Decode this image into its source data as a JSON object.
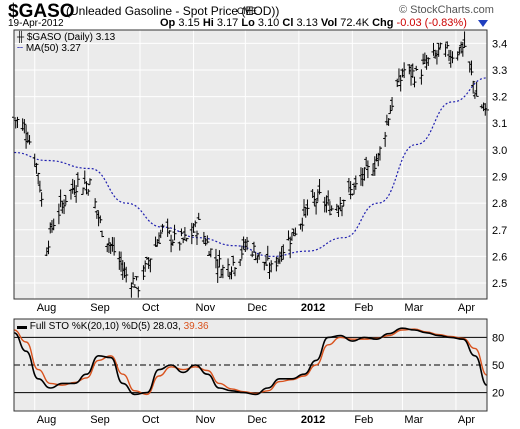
{
  "header": {
    "symbol": "$GASO",
    "description": "(Unleaded Gasoline - Spot Price (EOD))",
    "exchange": "CME",
    "watermark": "© StockCharts.com",
    "date": "19-Apr-2012",
    "op_label": "Op",
    "op": "3.15",
    "hi_label": "Hi",
    "hi": "3.17",
    "lo_label": "Lo",
    "lo": "3.10",
    "cl_label": "Cl",
    "cl": "3.13",
    "vol_label": "Vol",
    "vol": "72.4K",
    "chg_label": "Chg",
    "chg": "-0.03 (-0.83%)"
  },
  "legend": {
    "price": "$GASO (Daily) 3.13",
    "ma": "MA(50) 3.27",
    "sto_prefix": "Full STO %K(20,10) %D(5)",
    "sto_k": "28.03",
    "sto_d": "39.36"
  },
  "colors": {
    "background": "#ebebeb",
    "grid": "#ffffff",
    "price_bars": "#000000",
    "ma": "#2020b0",
    "sto_k": "#000000",
    "sto_d": "#d9531e",
    "header_arrow": "#1f3fbf",
    "chg": "#cc0000"
  },
  "chart_data": [
    {
      "type": "ohlc",
      "title": "$GASO (Unleaded Gasoline - Spot Price (EOD))",
      "x_range": [
        "2011-07-20",
        "2012-04-19"
      ],
      "x_ticks": [
        "Aug",
        "Sep",
        "Oct",
        "Nov",
        "Dec",
        "2012",
        "Feb",
        "Mar",
        "Apr"
      ],
      "ylim": [
        2.44,
        3.45
      ],
      "y_ticks": [
        "2.5",
        "2.6",
        "2.7",
        "2.8",
        "2.9",
        "3.0",
        "3.1",
        "3.2",
        "3.3",
        "3.4"
      ],
      "grid": true,
      "series": [
        {
          "name": "$GASO (Daily)",
          "type": "close",
          "x": [
            "2011-07-20",
            "2011-07-27",
            "2011-08-03",
            "2011-08-08",
            "2011-08-12",
            "2011-08-19",
            "2011-08-26",
            "2011-09-02",
            "2011-09-09",
            "2011-09-16",
            "2011-09-23",
            "2011-09-30",
            "2011-10-07",
            "2011-10-14",
            "2011-10-21",
            "2011-10-28",
            "2011-11-04",
            "2011-11-11",
            "2011-11-18",
            "2011-11-25",
            "2011-12-02",
            "2011-12-09",
            "2011-12-16",
            "2011-12-23",
            "2011-12-30",
            "2012-01-06",
            "2012-01-13",
            "2012-01-20",
            "2012-01-27",
            "2012-02-03",
            "2012-02-10",
            "2012-02-16",
            "2012-02-24",
            "2012-03-02",
            "2012-03-09",
            "2012-03-16",
            "2012-03-23",
            "2012-03-30",
            "2012-04-06",
            "2012-04-13",
            "2012-04-19"
          ],
          "values": [
            3.12,
            3.08,
            2.92,
            2.64,
            2.73,
            2.82,
            2.88,
            2.87,
            2.7,
            2.62,
            2.53,
            2.49,
            2.6,
            2.7,
            2.66,
            2.66,
            2.72,
            2.62,
            2.55,
            2.58,
            2.65,
            2.6,
            2.55,
            2.63,
            2.7,
            2.78,
            2.82,
            2.78,
            2.82,
            2.86,
            2.92,
            2.97,
            3.18,
            3.3,
            3.28,
            3.33,
            3.37,
            3.36,
            3.39,
            3.2,
            3.13
          ]
        },
        {
          "name": "MA(50)",
          "x": [
            "2011-07-20",
            "2011-08-08",
            "2011-09-02",
            "2011-09-23",
            "2011-10-14",
            "2011-11-04",
            "2011-11-25",
            "2011-12-16",
            "2012-01-06",
            "2012-01-27",
            "2012-02-16",
            "2012-03-09",
            "2012-03-30",
            "2012-04-19"
          ],
          "values": [
            2.99,
            2.96,
            2.93,
            2.8,
            2.71,
            2.67,
            2.64,
            2.6,
            2.62,
            2.67,
            2.8,
            3.02,
            3.18,
            3.27
          ]
        }
      ]
    },
    {
      "type": "line",
      "title": "Full STO %K(20,10) %D(5)",
      "ylim": [
        0,
        100
      ],
      "y_ticks": [
        "20",
        "50",
        "80"
      ],
      "reference_lines": [
        20,
        50,
        80
      ],
      "x_ticks": [
        "Aug",
        "Sep",
        "Oct",
        "Nov",
        "Dec",
        "2012",
        "Feb",
        "Mar",
        "Apr"
      ],
      "series": [
        {
          "name": "%K",
          "x": [
            "2011-07-20",
            "2011-07-27",
            "2011-08-03",
            "2011-08-10",
            "2011-08-17",
            "2011-08-24",
            "2011-08-31",
            "2011-09-07",
            "2011-09-14",
            "2011-09-21",
            "2011-09-28",
            "2011-10-05",
            "2011-10-12",
            "2011-10-19",
            "2011-10-26",
            "2011-11-02",
            "2011-11-09",
            "2011-11-16",
            "2011-11-23",
            "2011-11-30",
            "2011-12-07",
            "2011-12-14",
            "2011-12-21",
            "2011-12-28",
            "2012-01-04",
            "2012-01-11",
            "2012-01-18",
            "2012-01-25",
            "2012-02-01",
            "2012-02-08",
            "2012-02-15",
            "2012-02-22",
            "2012-03-01",
            "2012-03-08",
            "2012-03-15",
            "2012-03-22",
            "2012-03-29",
            "2012-04-05",
            "2012-04-12",
            "2012-04-19"
          ],
          "values": [
            85,
            65,
            35,
            25,
            30,
            30,
            40,
            60,
            58,
            30,
            18,
            20,
            45,
            50,
            42,
            50,
            40,
            25,
            22,
            20,
            18,
            25,
            35,
            35,
            40,
            55,
            80,
            82,
            76,
            80,
            78,
            84,
            90,
            88,
            85,
            82,
            80,
            78,
            60,
            28
          ]
        },
        {
          "name": "%D",
          "x": [
            "2011-07-20",
            "2011-07-27",
            "2011-08-03",
            "2011-08-10",
            "2011-08-17",
            "2011-08-24",
            "2011-08-31",
            "2011-09-07",
            "2011-09-14",
            "2011-09-21",
            "2011-09-28",
            "2011-10-05",
            "2011-10-12",
            "2011-10-19",
            "2011-10-26",
            "2011-11-02",
            "2011-11-09",
            "2011-11-16",
            "2011-11-23",
            "2011-11-30",
            "2011-12-07",
            "2011-12-14",
            "2011-12-21",
            "2011-12-28",
            "2012-01-04",
            "2012-01-11",
            "2012-01-18",
            "2012-01-25",
            "2012-02-01",
            "2012-02-08",
            "2012-02-15",
            "2012-02-22",
            "2012-03-01",
            "2012-03-08",
            "2012-03-15",
            "2012-03-22",
            "2012-03-29",
            "2012-04-05",
            "2012-04-12",
            "2012-04-19"
          ],
          "values": [
            88,
            75,
            45,
            30,
            28,
            31,
            36,
            55,
            60,
            40,
            22,
            18,
            38,
            48,
            45,
            48,
            44,
            30,
            24,
            21,
            19,
            22,
            32,
            34,
            38,
            50,
            72,
            80,
            78,
            78,
            79,
            82,
            88,
            89,
            86,
            83,
            81,
            79,
            68,
            39
          ]
        }
      ]
    }
  ]
}
